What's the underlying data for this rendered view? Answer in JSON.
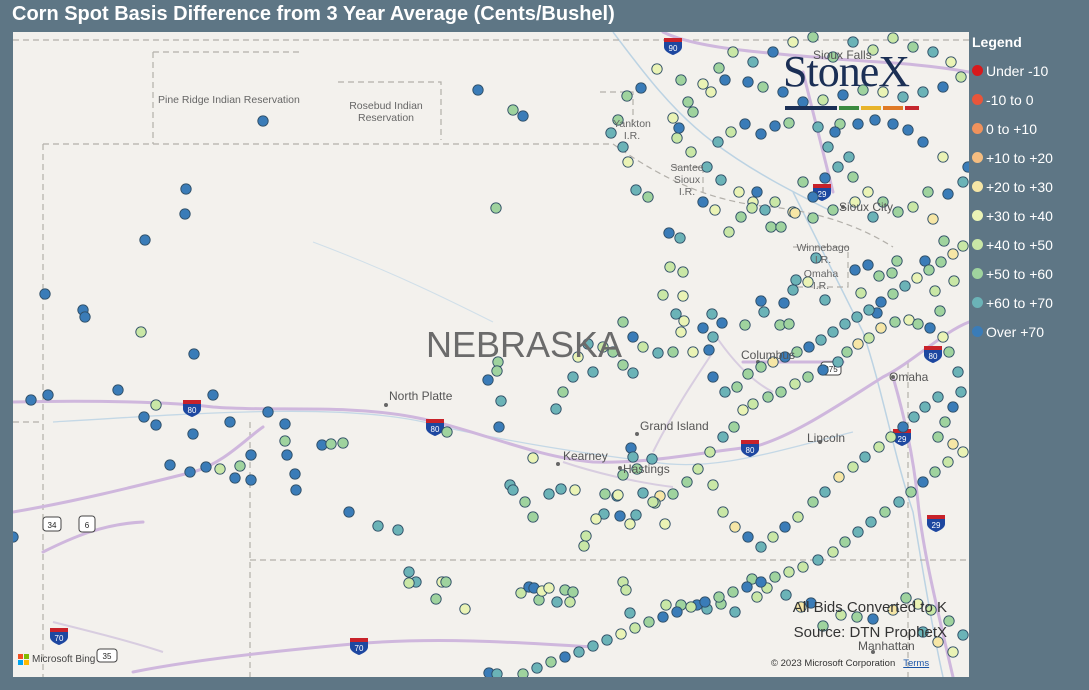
{
  "title": "Corn Spot Basis Difference from 3 Year Average (Cents/Bushel)",
  "logo": {
    "text": "StoneX"
  },
  "legend": {
    "title": "Legend",
    "items": [
      {
        "label": "Under -10",
        "color": "#d7191c"
      },
      {
        "label": "-10 to 0",
        "color": "#e8553a"
      },
      {
        "label": "0 to +10",
        "color": "#f0925c"
      },
      {
        "label": "+10 to +20",
        "color": "#f5bd80"
      },
      {
        "label": "+20 to +30",
        "color": "#f6e6a6"
      },
      {
        "label": "+30 to +40",
        "color": "#eaf3b5"
      },
      {
        "label": "+40 to +50",
        "color": "#c9e7a6"
      },
      {
        "label": "+50 to +60",
        "color": "#9fd39e"
      },
      {
        "label": "+60 to +70",
        "color": "#6bb3b7"
      },
      {
        "label": "Over +70",
        "color": "#3a7cb8"
      }
    ]
  },
  "map": {
    "state_label": "NEBRASKA",
    "places": {
      "pine_ridge": "Pine Ridge Indian Reservation",
      "rosebud": "Rosebud Indian Reservation",
      "yankton": "Yankton I.R.",
      "santee": "Santee Sioux I.R.",
      "winnebago": "Winnebago I.R.",
      "omaha_ir": "Omaha I.R.",
      "sioux_falls": "Sioux Falls",
      "sioux_city": "Sioux City",
      "north_platte": "North Platte",
      "grand_island": "Grand Island",
      "kearney": "Kearney",
      "hastings": "Hastings",
      "columbus": "Columbus",
      "omaha": "Omaha",
      "lincoln": "Lincoln",
      "manhattan": "Manhattan"
    },
    "highway_shields": [
      "90",
      "80",
      "80",
      "80",
      "80",
      "29",
      "29",
      "29",
      "70",
      "70",
      "34",
      "6",
      "275",
      "35"
    ],
    "bids_note": "All Bids Converted to K",
    "source_note": "Source: DTN ProphetX",
    "bing_label": "Microsoft Bing",
    "copyright": "© 2023 Microsoft Corporation",
    "terms_label": "Terms"
  }
}
